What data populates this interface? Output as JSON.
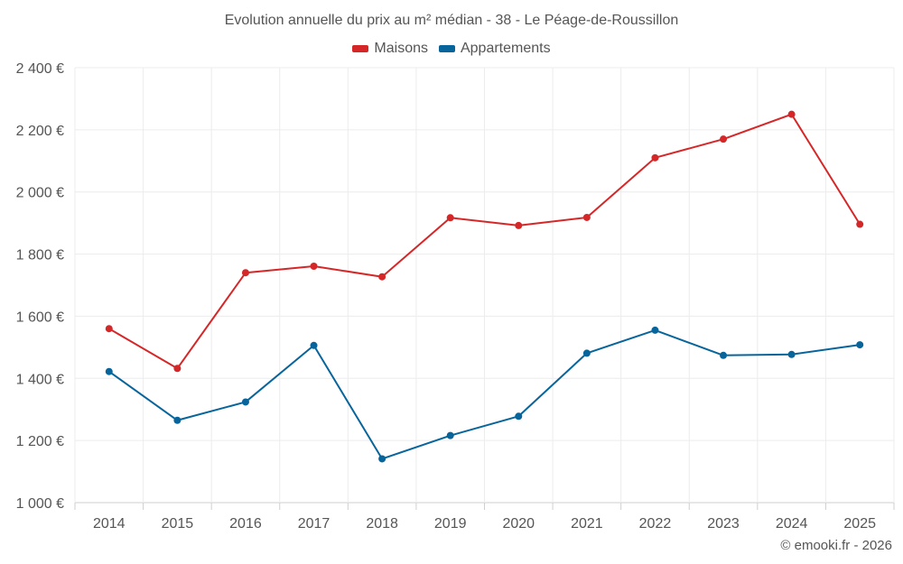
{
  "chart_data": {
    "type": "line",
    "title": "Evolution annuelle du prix au m² médian - 38 - Le Péage-de-Roussillon",
    "categories": [
      "2014",
      "2015",
      "2016",
      "2017",
      "2018",
      "2019",
      "2020",
      "2021",
      "2022",
      "2023",
      "2024",
      "2025"
    ],
    "series": [
      {
        "name": "Maisons",
        "color": "#d62728",
        "values": [
          1560,
          1432,
          1740,
          1761,
          1727,
          1917,
          1892,
          1918,
          2110,
          2170,
          2250,
          1896
        ]
      },
      {
        "name": "Appartements",
        "color": "#08659c",
        "values": [
          1422,
          1265,
          1324,
          1506,
          1141,
          1216,
          1278,
          1481,
          1555,
          1474,
          1477,
          1508
        ]
      }
    ],
    "yticks": [
      1000,
      1200,
      1400,
      1600,
      1800,
      2000,
      2200,
      2400
    ],
    "ytick_labels": [
      "1 000 €",
      "1 200 €",
      "1 400 €",
      "1 600 €",
      "1 800 €",
      "2 000 €",
      "2 200 €",
      "2 400 €"
    ],
    "ylim": [
      1000,
      2400
    ],
    "xlabel": "",
    "ylabel": "",
    "grid": true,
    "legend_position": "top-center"
  },
  "copyright": "© emooki.fr - 2026"
}
